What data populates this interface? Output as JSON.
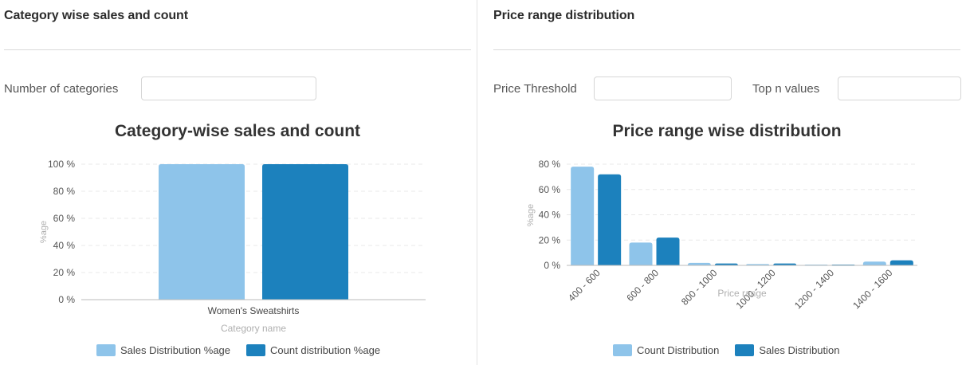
{
  "colors": {
    "light": "#8ec4ea",
    "dark": "#1c81bd",
    "grid": "#e8e8e8",
    "axis": "#bbbbbb",
    "muted": "#b0b0b0"
  },
  "left_panel": {
    "title": "Category wise sales and count",
    "field_label": "Number of categories",
    "field_value": ""
  },
  "right_panel": {
    "title": "Price range distribution",
    "threshold_label": "Price Threshold",
    "threshold_value": "",
    "topn_label": "Top n values",
    "topn_value": ""
  },
  "chart_data": [
    {
      "type": "bar",
      "title": "Category-wise sales and count",
      "xlabel": "Category name",
      "ylabel": "%age",
      "categories": [
        "Women's Sweatshirts"
      ],
      "series": [
        {
          "name": "Sales Distribution %age",
          "values": [
            100
          ],
          "color": "#8ec4ea"
        },
        {
          "name": "Count distribution %age",
          "values": [
            100
          ],
          "color": "#1c81bd"
        }
      ],
      "ylim": [
        0,
        100
      ],
      "yticks": [
        "0 %",
        "20 %",
        "40 %",
        "60 %",
        "80 %",
        "100 %"
      ],
      "grid": true,
      "legend": "bottom-center"
    },
    {
      "type": "bar",
      "title": "Price range wise distribution",
      "xlabel": "Price range",
      "ylabel": "%age",
      "categories": [
        "400 - 600",
        "600 - 800",
        "800 - 1000",
        "1000 - 1200",
        "1200 - 1400",
        "1400 - 1600"
      ],
      "series": [
        {
          "name": "Count Distribution",
          "values": [
            78,
            18,
            2,
            1,
            0.5,
            3
          ],
          "color": "#8ec4ea"
        },
        {
          "name": "Sales Distribution",
          "values": [
            72,
            22,
            1.5,
            1.5,
            0.5,
            4
          ],
          "color": "#1c81bd"
        }
      ],
      "ylim": [
        0,
        80
      ],
      "yticks": [
        "0 %",
        "20 %",
        "40 %",
        "60 %",
        "80 %"
      ],
      "grid": true,
      "legend": "bottom-center"
    }
  ]
}
